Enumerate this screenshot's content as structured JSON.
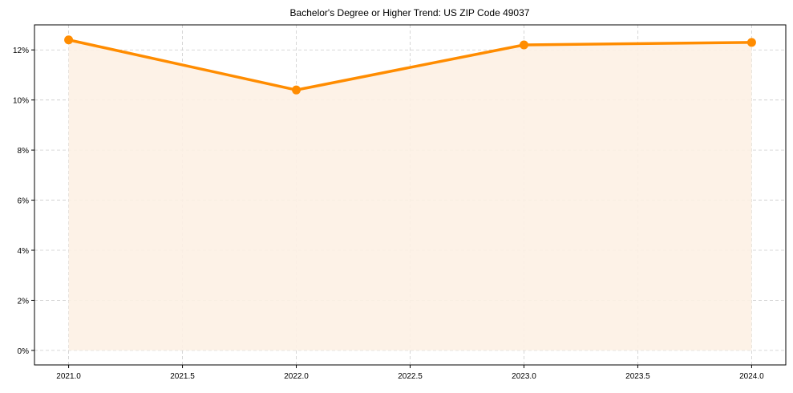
{
  "chart_data": {
    "type": "area",
    "title": "Bachelor's Degree or Higher Trend: US ZIP Code 49037",
    "xlabel": "",
    "ylabel": "",
    "x": [
      2021,
      2022,
      2023,
      2024
    ],
    "series": [
      {
        "name": "Bachelor's Degree or Higher",
        "values": [
          12.4,
          10.4,
          12.2,
          12.3
        ],
        "color": "#ff8c00",
        "fill": "#fdf1e4"
      }
    ],
    "xticks": [
      2021.0,
      2021.5,
      2022.0,
      2022.5,
      2023.0,
      2023.5,
      2024.0
    ],
    "xtick_labels": [
      "2021.0",
      "2021.5",
      "2022.0",
      "2022.5",
      "2023.0",
      "2023.5",
      "2024.0"
    ],
    "yticks": [
      0,
      2,
      4,
      6,
      8,
      10,
      12
    ],
    "ytick_labels": [
      "0%",
      "2%",
      "4%",
      "6%",
      "8%",
      "10%",
      "12%"
    ],
    "xlim": [
      2020.85,
      2024.15
    ],
    "ylim": [
      -0.58,
      13.0
    ],
    "grid": true
  }
}
